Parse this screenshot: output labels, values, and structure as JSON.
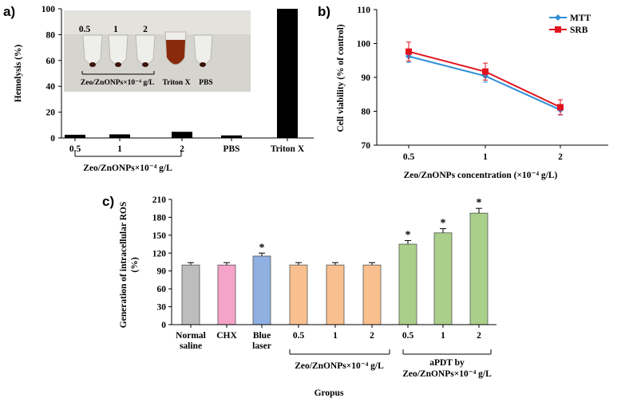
{
  "chart_data": [
    {
      "panel": "a)",
      "type": "bar",
      "ylabel": "Hemolysis (%)",
      "ylim": [
        0,
        100
      ],
      "yticks": [
        0,
        20,
        40,
        60,
        80,
        100
      ],
      "categories": [
        "0.5",
        "1",
        "2",
        "PBS",
        "Triton X"
      ],
      "values": [
        2.5,
        2.8,
        4.8,
        2.0,
        100
      ],
      "bar_color": "#000000",
      "group_label": "Zeo/ZnONPs×10⁻⁴ g/L",
      "inset": {
        "tube_labels": [
          "0.5",
          "1",
          "2"
        ],
        "group_label": "Zeo/ZnONPs×10⁻⁴ g/L",
        "triton_label": "Triton X",
        "pbs_label": "PBS"
      }
    },
    {
      "panel": "b)",
      "type": "line",
      "ylabel": "Cell viability (% of control)",
      "xlabel": "Zeo/ZnONPs concentration (×10⁻⁴ g/L)",
      "ylim": [
        70,
        110
      ],
      "yticks": [
        70,
        80,
        90,
        100,
        110
      ],
      "categories": [
        "0.5",
        "1",
        "2"
      ],
      "legend_position": "top-right",
      "series": [
        {
          "name": "MTT",
          "values": [
            96.2,
            90.4,
            80.4
          ],
          "errors": [
            1.8,
            1.8,
            1.5
          ],
          "color": "#2f8fd6",
          "marker": "diamond"
        },
        {
          "name": "SRB",
          "values": [
            97.6,
            91.7,
            81.2
          ],
          "errors": [
            2.8,
            2.5,
            2.2
          ],
          "color": "#e1141e",
          "marker": "square"
        }
      ]
    },
    {
      "panel": "c)",
      "type": "bar",
      "ylabel": "Generation of intracellular ROS (%)",
      "xlabel": "Gropus",
      "ylim": [
        0,
        210
      ],
      "yticks": [
        0,
        30,
        60,
        90,
        120,
        150,
        180,
        210
      ],
      "categories": [
        "Normal saline",
        "CHX",
        "Blue laser",
        "0.5",
        "1",
        "2",
        "0.5",
        "1",
        "2"
      ],
      "values": [
        100,
        100,
        115,
        100,
        100,
        100,
        135,
        154,
        187
      ],
      "errors": [
        4,
        4,
        5,
        4,
        4,
        4,
        6,
        7,
        8
      ],
      "significance": [
        "",
        "",
        "*",
        "",
        "",
        "",
        "*",
        "*",
        "*"
      ],
      "colors": [
        "#bdbdbd",
        "#f5a3c8",
        "#8fb0e0",
        "#f9c08f",
        "#f9c08f",
        "#f9c08f",
        "#a9cf8a",
        "#a9cf8a",
        "#a9cf8a"
      ],
      "groups": [
        {
          "label": "Zeo/ZnONPs×10⁻⁴ g/L",
          "from": 3,
          "to": 5
        },
        {
          "label": "aPDT by Zeo/ZnONPs×10⁻⁴ g/L",
          "from": 6,
          "to": 8
        }
      ]
    }
  ]
}
